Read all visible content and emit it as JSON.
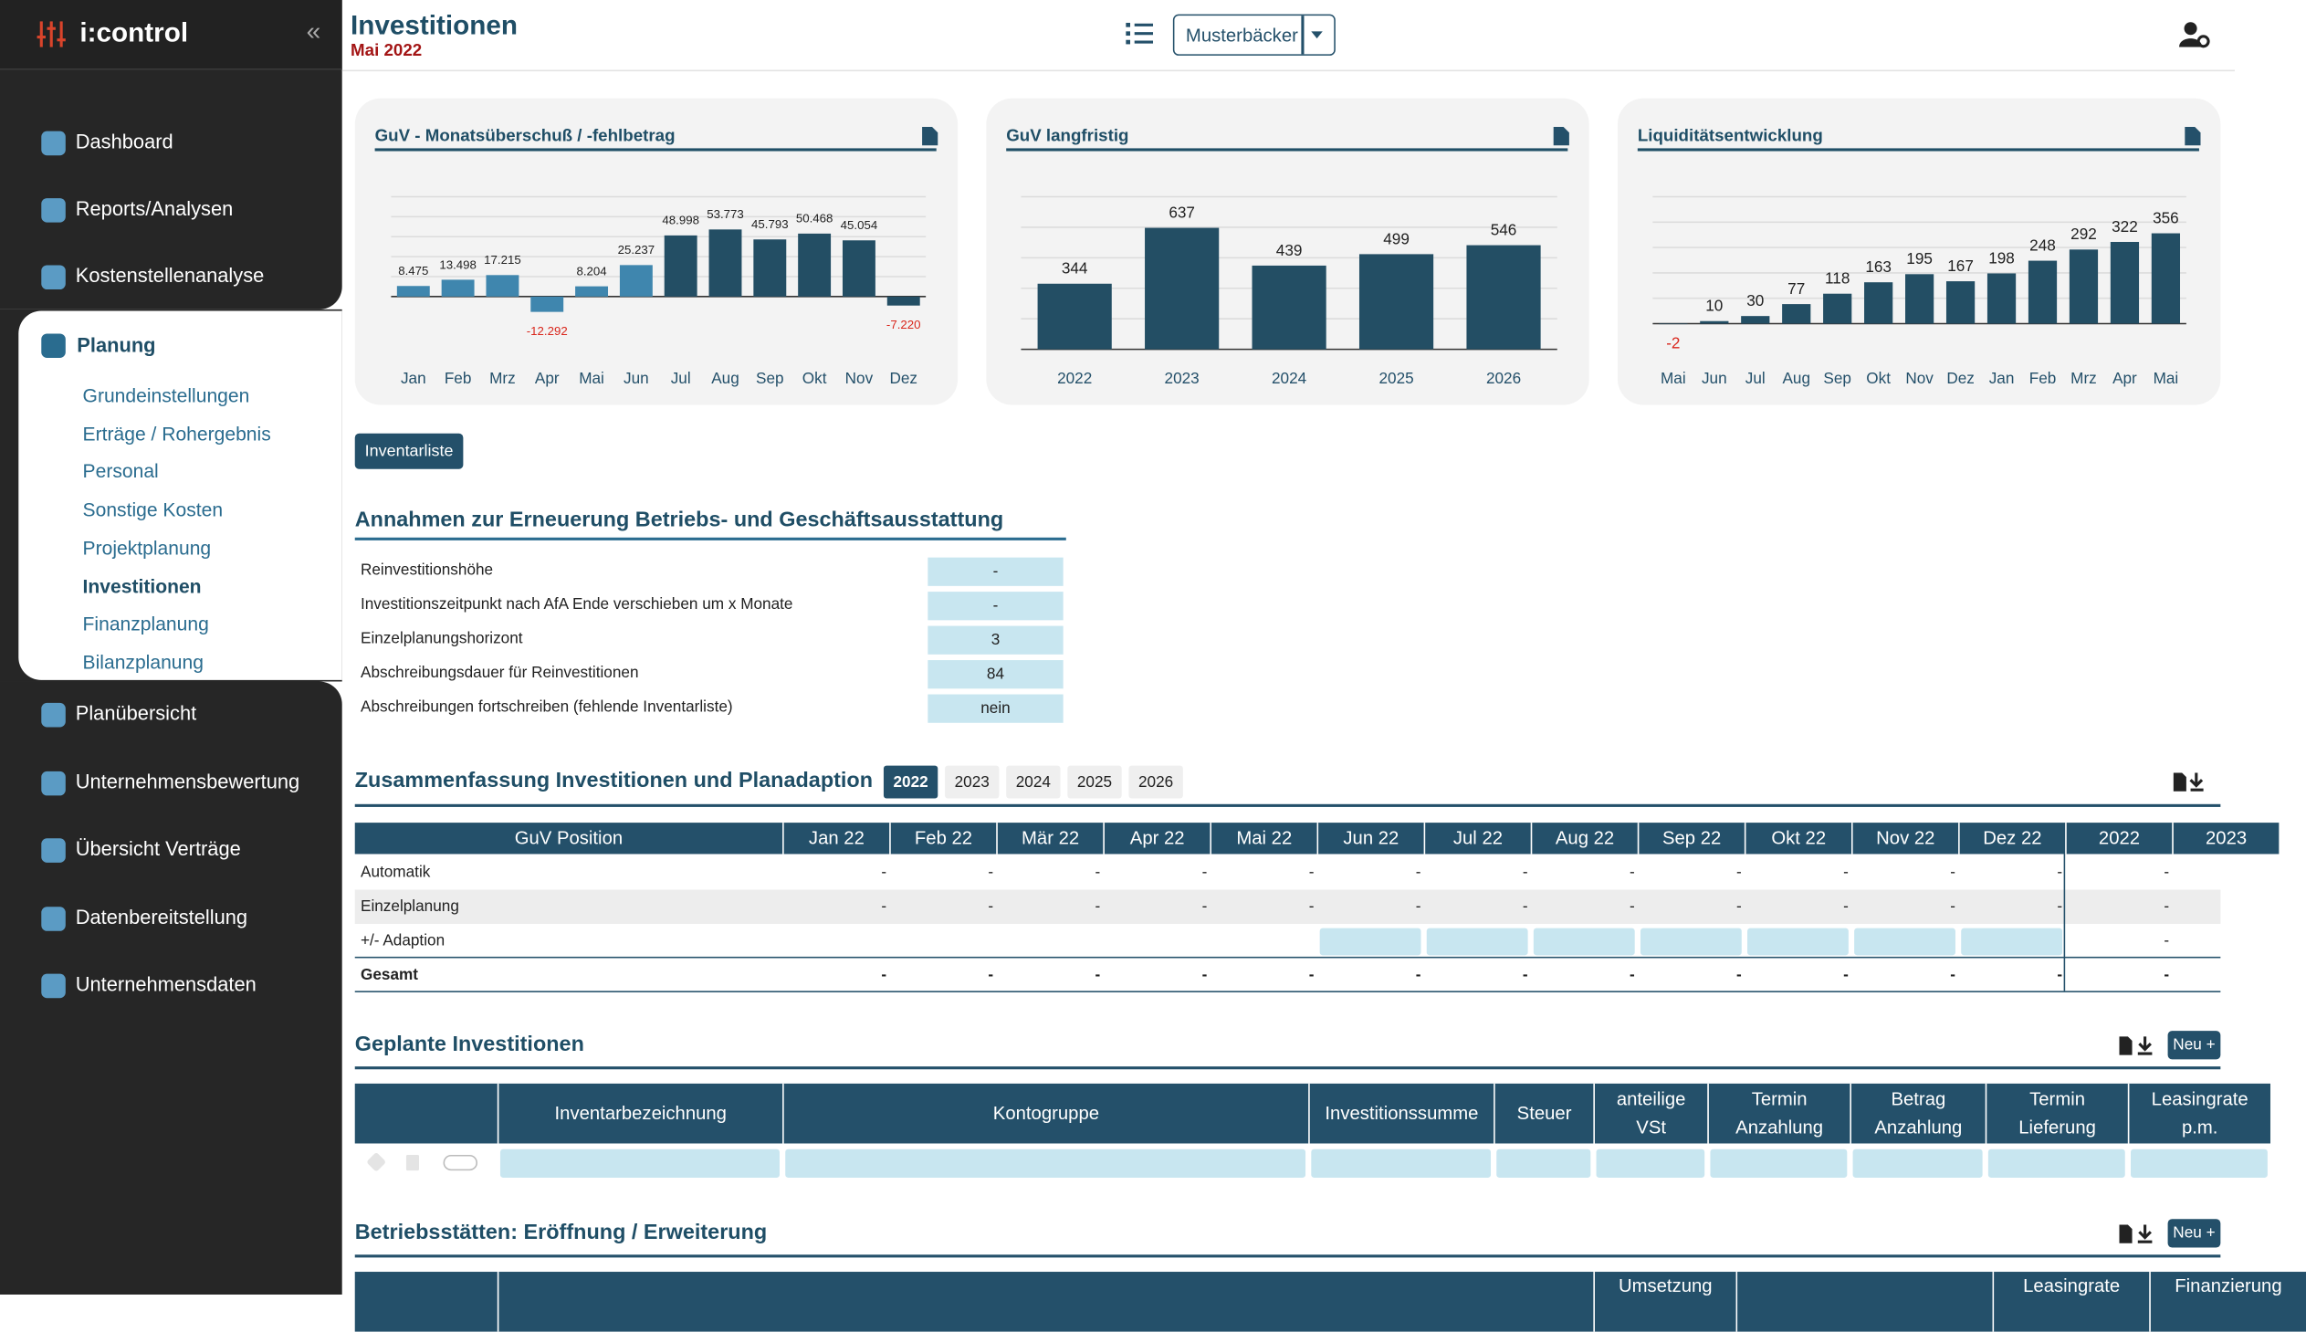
{
  "sidebar": {
    "brand": "i:control",
    "top_items": [
      "Dashboard",
      "Reports/Analysen",
      "Kostenstellenanalyse"
    ],
    "active_group": {
      "label": "Planung",
      "items": [
        "Grundeinstellungen",
        "Erträge / Rohergebnis",
        "Personal",
        "Sonstige Kosten",
        "Projektplanung",
        "Investitionen",
        "Finanzplanung",
        "Bilanzplanung"
      ]
    },
    "bottom_items": [
      "Planübersicht",
      "Unternehmensbewertung",
      "Übersicht Verträge",
      "Datenbereitstellung",
      "Unternehmensdaten"
    ]
  },
  "header": {
    "title": "Investitionen",
    "subtitle": "Mai 2022",
    "company": "Musterbäcker"
  },
  "chart_data": [
    {
      "type": "bar",
      "title": "GuV - Monatsüberschuß / -fehlbetrag",
      "categories": [
        "Jan",
        "Feb",
        "Mrz",
        "Apr",
        "Mai",
        "Jun",
        "Jul",
        "Aug",
        "Sep",
        "Okt",
        "Nov",
        "Dez"
      ],
      "values": [
        8475,
        13498,
        17215,
        -12292,
        8204,
        25237,
        48998,
        53773,
        45793,
        50468,
        45054,
        -7220
      ],
      "value_labels": [
        "8.475",
        "13.498",
        "17.215",
        "-12.292",
        "8.204",
        "25.237",
        "48.998",
        "53.773",
        "45.793",
        "50.468",
        "45.054",
        "-7.220"
      ],
      "colors": [
        "#3f86ae",
        "#3f86ae",
        "#3f86ae",
        "#3f86ae",
        "#3f86ae",
        "#3f86ae",
        "#234e64",
        "#234e64",
        "#234e64",
        "#234e64",
        "#234e64",
        "#234e64"
      ],
      "ylim": [
        -20000,
        80000
      ],
      "yticks": [
        0,
        16000,
        32000,
        48000,
        64000,
        80000
      ],
      "grid": true
    },
    {
      "type": "bar",
      "title": "GuV langfristig",
      "categories": [
        "2022",
        "2023",
        "2024",
        "2025",
        "2026"
      ],
      "values": [
        344,
        637,
        439,
        499,
        546
      ],
      "color": "#234e64",
      "ylim": [
        0,
        800
      ],
      "yticks": [
        0,
        160,
        320,
        480,
        640,
        800
      ],
      "grid": true
    },
    {
      "type": "bar",
      "title": "Liquiditätsentwicklung",
      "categories": [
        "Mai",
        "Jun",
        "Jul",
        "Aug",
        "Sep",
        "Okt",
        "Nov",
        "Dez",
        "Jan",
        "Feb",
        "Mrz",
        "Apr",
        "Mai"
      ],
      "values": [
        -2,
        10,
        30,
        77,
        118,
        163,
        195,
        167,
        198,
        248,
        292,
        322,
        356
      ],
      "color": "#234e64",
      "ylim": [
        -50,
        500
      ],
      "yticks": [
        0,
        100,
        200,
        300,
        400,
        500
      ],
      "grid": true
    }
  ],
  "inventory_button": "Inventarliste",
  "assumptions": {
    "title": "Annahmen zur Erneuerung Betriebs- und Geschäftsausstattung",
    "rows": [
      {
        "label": "Reinvestitionshöhe",
        "value": "-"
      },
      {
        "label": "Investitionszeitpunkt nach AfA Ende verschieben um x Monate",
        "value": "-"
      },
      {
        "label": "Einzelplanungshorizont",
        "value": 3
      },
      {
        "label": "Abschreibungsdauer für Reinvestitionen",
        "value": 84
      },
      {
        "label": "Abschreibungen fortschreiben (fehlende Inventarliste)",
        "value": "nein"
      }
    ]
  },
  "summary": {
    "title": "Zusammenfassung Investitionen und Planadaption",
    "years": [
      "2022",
      "2023",
      "2024",
      "2025",
      "2026"
    ],
    "columns": [
      "GuV Position",
      "Jan 22",
      "Feb 22",
      "Mär 22",
      "Apr 22",
      "Mai 22",
      "Jun 22",
      "Jul 22",
      "Aug 22",
      "Sep 22",
      "Okt 22",
      "Nov 22",
      "Dez 22",
      "2022",
      "2023"
    ],
    "rows": [
      {
        "label": "Automatik",
        "cells": [
          "-",
          "-",
          "-",
          "-",
          "-",
          "-",
          "-",
          "-",
          "-",
          "-",
          "-",
          "-",
          "-"
        ]
      },
      {
        "label": "Einzelplanung",
        "cells": [
          "-",
          "-",
          "-",
          "-",
          "-",
          "-",
          "-",
          "-",
          "-",
          "-",
          "-",
          "-",
          "-"
        ]
      },
      {
        "label": "+/- Adaption",
        "cells": [
          null,
          null,
          null,
          null,
          null,
          null,
          null,
          null,
          null,
          null,
          null,
          null,
          "-"
        ]
      },
      {
        "label": "Gesamt",
        "cells": [
          "-",
          "-",
          "-",
          "-",
          "-",
          "-",
          "-",
          "-",
          "-",
          "-",
          "-",
          "-",
          "-"
        ]
      }
    ]
  },
  "planned": {
    "title": "Geplante Investitionen",
    "button": "Neu +",
    "columns": [
      "Inventarbezeichnung",
      "Kontogruppe",
      "Investitionssumme",
      "Steuer",
      "anteilige VSt",
      "Termin Anzahlung",
      "Betrag Anzahlung",
      "Termin Lieferung",
      "Leasingrate p.m."
    ]
  },
  "sites": {
    "title": "Betriebsstätten: Eröffnung / Erweiterung",
    "button": "Neu +",
    "columns": [
      "Umsetzung",
      "Leasingrate",
      "Finanzierung"
    ]
  }
}
